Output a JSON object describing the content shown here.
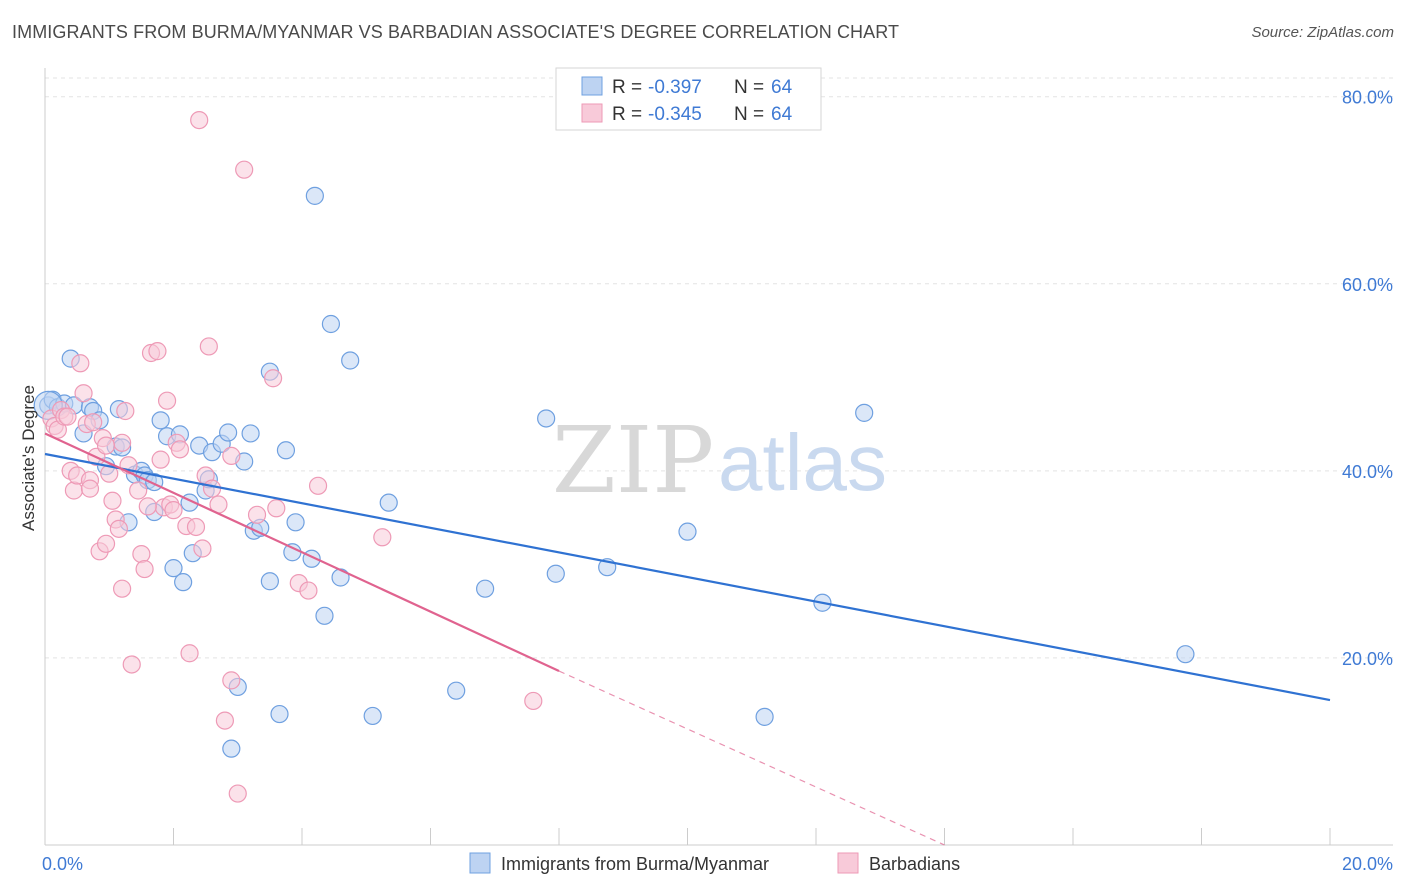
{
  "title": "IMMIGRANTS FROM BURMA/MYANMAR VS BARBADIAN ASSOCIATE'S DEGREE CORRELATION CHART",
  "source": "Source: ZipAtlas.com",
  "watermark": {
    "zip": "ZIP",
    "atlas": "atlas"
  },
  "chart_data": {
    "type": "scatter",
    "ylabel": "Associate's Degree",
    "xlim": [
      0,
      20
    ],
    "ylim": [
      0,
      82
    ],
    "x_tick_labels": [
      "0.0%",
      "20.0%"
    ],
    "y_ticks": [
      20,
      40,
      60,
      80
    ],
    "y_tick_labels": [
      "20.0%",
      "40.0%",
      "60.0%",
      "80.0%"
    ],
    "grid": "horizontal dashed",
    "legend": {
      "placement": "top-center",
      "entries": [
        {
          "r_label": "R = ",
          "r_value": "-0.397",
          "n_label": "N = ",
          "n_value": "64"
        },
        {
          "r_label": "R = ",
          "r_value": "-0.345",
          "n_label": "N = ",
          "n_value": "64"
        }
      ]
    },
    "series": [
      {
        "name": "Immigrants from Burma/Myanmar",
        "color": "#6fa0e0",
        "fill": "#bdd3f2",
        "line_color": "#2f72d2",
        "trend": {
          "x": [
            0,
            20
          ],
          "y": [
            41.8,
            15.5
          ],
          "dashed_from": null
        },
        "points": [
          [
            0.05,
            47.0
          ],
          [
            0.12,
            47.6
          ],
          [
            0.2,
            46.8
          ],
          [
            0.3,
            47.2
          ],
          [
            0.45,
            47.0
          ],
          [
            0.4,
            52.0
          ],
          [
            0.6,
            44.0
          ],
          [
            0.7,
            46.8
          ],
          [
            0.75,
            46.4
          ],
          [
            0.85,
            45.4
          ],
          [
            0.95,
            40.5
          ],
          [
            1.1,
            42.6
          ],
          [
            1.2,
            42.5
          ],
          [
            1.15,
            46.6
          ],
          [
            1.3,
            34.5
          ],
          [
            1.4,
            39.6
          ],
          [
            1.5,
            40.0
          ],
          [
            1.55,
            39.5
          ],
          [
            1.6,
            39.0
          ],
          [
            1.7,
            38.8
          ],
          [
            1.7,
            35.6
          ],
          [
            1.8,
            45.4
          ],
          [
            1.9,
            43.7
          ],
          [
            2.0,
            29.6
          ],
          [
            2.1,
            43.9
          ],
          [
            2.15,
            28.1
          ],
          [
            2.25,
            36.6
          ],
          [
            2.3,
            31.2
          ],
          [
            2.4,
            42.7
          ],
          [
            2.5,
            37.9
          ],
          [
            2.55,
            39.1
          ],
          [
            2.6,
            42.0
          ],
          [
            2.75,
            42.9
          ],
          [
            2.85,
            44.1
          ],
          [
            2.9,
            10.3
          ],
          [
            3.0,
            16.9
          ],
          [
            3.1,
            41.0
          ],
          [
            3.2,
            44.0
          ],
          [
            3.25,
            33.6
          ],
          [
            3.35,
            33.9
          ],
          [
            3.5,
            50.6
          ],
          [
            3.5,
            28.2
          ],
          [
            3.65,
            14.0
          ],
          [
            3.75,
            42.2
          ],
          [
            3.85,
            31.3
          ],
          [
            3.9,
            34.5
          ],
          [
            4.15,
            30.6
          ],
          [
            4.2,
            69.4
          ],
          [
            4.35,
            24.5
          ],
          [
            4.45,
            55.7
          ],
          [
            4.6,
            28.6
          ],
          [
            4.75,
            51.8
          ],
          [
            5.1,
            13.8
          ],
          [
            5.35,
            36.6
          ],
          [
            6.4,
            16.5
          ],
          [
            6.85,
            27.4
          ],
          [
            7.8,
            45.6
          ],
          [
            7.95,
            29.0
          ],
          [
            8.75,
            29.7
          ],
          [
            10.0,
            33.5
          ],
          [
            11.2,
            13.7
          ],
          [
            12.1,
            25.9
          ],
          [
            12.75,
            46.2
          ],
          [
            17.75,
            20.4
          ]
        ],
        "big_point": [
          0.05,
          47.0
        ]
      },
      {
        "name": "Barbadians",
        "color": "#ee9ab6",
        "fill": "#f8cad9",
        "line_color": "#e0638f",
        "trend": {
          "x": [
            0,
            8.0
          ],
          "y": [
            44.0,
            18.6
          ],
          "dashed_to": [
            14.0,
            0.0
          ]
        },
        "points": [
          [
            0.1,
            45.6
          ],
          [
            0.15,
            44.8
          ],
          [
            0.2,
            44.4
          ],
          [
            0.25,
            46.5
          ],
          [
            0.3,
            45.8
          ],
          [
            0.35,
            45.8
          ],
          [
            0.4,
            40.0
          ],
          [
            0.45,
            37.9
          ],
          [
            0.5,
            39.5
          ],
          [
            0.55,
            51.5
          ],
          [
            0.6,
            48.3
          ],
          [
            0.65,
            45.0
          ],
          [
            0.7,
            39.0
          ],
          [
            0.7,
            38.1
          ],
          [
            0.75,
            45.2
          ],
          [
            0.8,
            41.5
          ],
          [
            0.85,
            31.4
          ],
          [
            0.9,
            43.5
          ],
          [
            0.95,
            32.2
          ],
          [
            1.0,
            39.7
          ],
          [
            1.05,
            36.8
          ],
          [
            1.1,
            34.8
          ],
          [
            1.15,
            33.8
          ],
          [
            1.2,
            43.0
          ],
          [
            1.25,
            46.4
          ],
          [
            1.3,
            40.6
          ],
          [
            1.35,
            19.3
          ],
          [
            1.45,
            37.9
          ],
          [
            1.5,
            31.1
          ],
          [
            1.55,
            29.5
          ],
          [
            1.65,
            52.6
          ],
          [
            1.75,
            52.8
          ],
          [
            1.8,
            41.2
          ],
          [
            1.85,
            36.1
          ],
          [
            1.9,
            47.5
          ],
          [
            1.95,
            36.4
          ],
          [
            2.0,
            35.8
          ],
          [
            2.05,
            43.0
          ],
          [
            2.1,
            42.3
          ],
          [
            2.2,
            34.1
          ],
          [
            2.25,
            20.5
          ],
          [
            2.35,
            34.0
          ],
          [
            2.45,
            31.7
          ],
          [
            2.5,
            39.5
          ],
          [
            2.55,
            53.3
          ],
          [
            2.6,
            38.1
          ],
          [
            2.7,
            36.4
          ],
          [
            2.8,
            13.3
          ],
          [
            2.9,
            17.6
          ],
          [
            3.0,
            5.5
          ],
          [
            3.1,
            72.2
          ],
          [
            3.3,
            35.3
          ],
          [
            3.55,
            49.9
          ],
          [
            3.95,
            28.0
          ],
          [
            4.1,
            27.2
          ],
          [
            4.25,
            38.4
          ],
          [
            5.25,
            32.9
          ],
          [
            7.6,
            15.4
          ],
          [
            2.4,
            77.5
          ],
          [
            1.2,
            27.4
          ],
          [
            0.95,
            42.7
          ],
          [
            1.6,
            36.2
          ],
          [
            2.9,
            41.6
          ],
          [
            3.6,
            36.0
          ]
        ]
      }
    ]
  }
}
